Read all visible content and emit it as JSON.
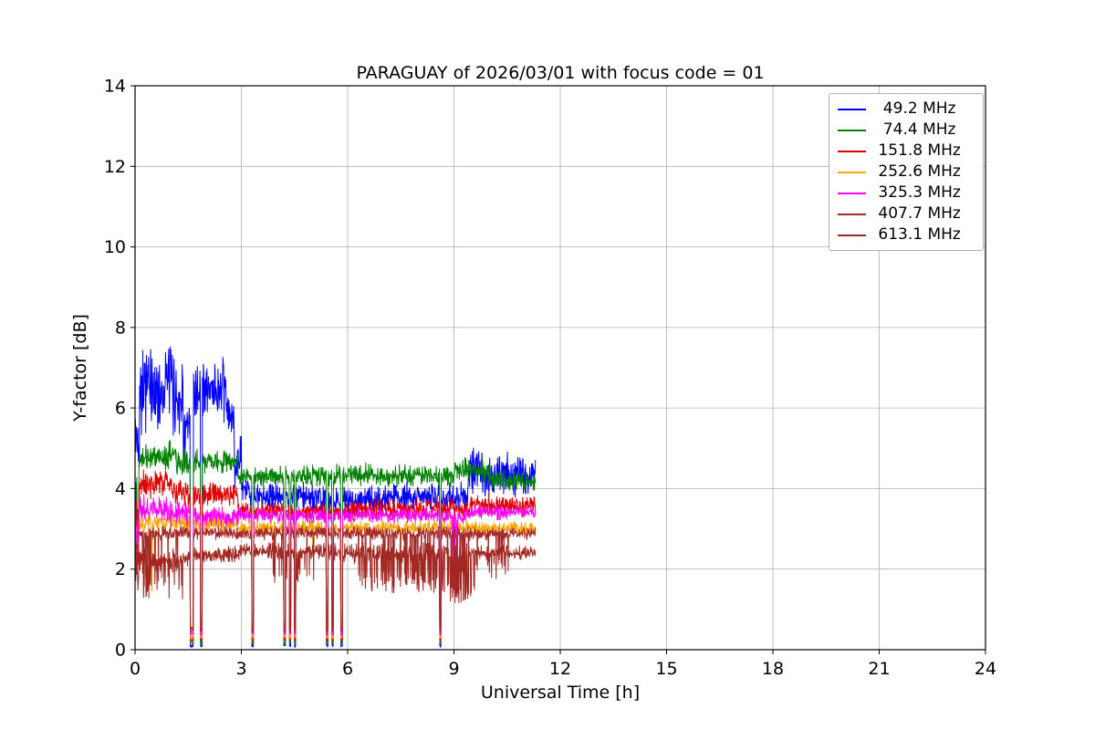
{
  "chart_data": {
    "type": "line",
    "title": "PARAGUAY of 2026/03/01 with focus code = 01",
    "xlabel": "Universal Time [h]",
    "ylabel": "Y-factor [dB]",
    "xlim": [
      0,
      24
    ],
    "ylim": [
      0,
      14
    ],
    "xticks": [
      0,
      3,
      6,
      9,
      12,
      15,
      18,
      21,
      24
    ],
    "yticks": [
      0,
      2,
      4,
      6,
      8,
      10,
      12,
      14
    ],
    "grid": true,
    "grid_color": "#b0b0b0",
    "legend_position": "upper right",
    "data_start": 0.0,
    "data_end": 11.3,
    "sample_step_hours": 0.01,
    "dropouts": [
      {
        "t": 1.6,
        "w": 0.09
      },
      {
        "t": 1.87,
        "w": 0.05
      },
      {
        "t": 3.32,
        "w": 0.05
      },
      {
        "t": 4.22,
        "w": 0.05
      },
      {
        "t": 4.38,
        "w": 0.04
      },
      {
        "t": 4.52,
        "w": 0.04
      },
      {
        "t": 5.42,
        "w": 0.05
      },
      {
        "t": 5.57,
        "w": 0.04
      },
      {
        "t": 5.83,
        "w": 0.05
      },
      {
        "t": 8.62,
        "w": 0.04
      }
    ],
    "series": [
      {
        "name": "49.2 MHz",
        "label": "  49.2 MHz",
        "color": "#0000ff",
        "band": [
          [
            0.0,
            0.12,
            4.2,
            6.2
          ],
          [
            0.12,
            0.4,
            5.2,
            8.0
          ],
          [
            0.4,
            0.8,
            5.2,
            7.6
          ],
          [
            0.8,
            1.05,
            5.6,
            7.8
          ],
          [
            1.05,
            1.35,
            5.2,
            7.4
          ],
          [
            1.35,
            1.58,
            4.6,
            6.2
          ],
          [
            1.58,
            1.82,
            5.6,
            7.2
          ],
          [
            1.82,
            2.3,
            5.6,
            7.4
          ],
          [
            2.3,
            2.6,
            5.4,
            7.3
          ],
          [
            2.6,
            2.8,
            4.8,
            6.6
          ],
          [
            2.8,
            3.0,
            3.9,
            5.4
          ],
          [
            3.0,
            3.3,
            3.5,
            4.4
          ],
          [
            3.3,
            5.0,
            3.4,
            4.2
          ],
          [
            5.0,
            7.0,
            3.3,
            4.1
          ],
          [
            7.0,
            9.4,
            3.4,
            4.2
          ],
          [
            9.4,
            9.9,
            3.7,
            5.2
          ],
          [
            9.9,
            10.4,
            3.6,
            4.9
          ],
          [
            10.4,
            11.31,
            3.7,
            5.0
          ]
        ],
        "spikes": []
      },
      {
        "name": "74.4 MHz",
        "label": "  74.4 MHz",
        "color": "#008000",
        "band": [
          [
            0.0,
            0.1,
            2.2,
            4.6
          ],
          [
            0.1,
            0.95,
            4.4,
            5.15
          ],
          [
            0.95,
            1.15,
            4.5,
            5.3
          ],
          [
            1.15,
            1.58,
            4.3,
            5.0
          ],
          [
            1.58,
            2.9,
            4.3,
            5.0
          ],
          [
            2.9,
            5.0,
            4.0,
            4.6
          ],
          [
            5.0,
            9.0,
            4.0,
            4.65
          ],
          [
            9.0,
            10.0,
            4.1,
            4.8
          ],
          [
            10.0,
            11.31,
            3.9,
            4.5
          ]
        ],
        "spikes": []
      },
      {
        "name": "151.8 MHz",
        "label": " 151.8 MHz",
        "color": "#e00000",
        "band": [
          [
            0.0,
            0.1,
            1.5,
            4.2
          ],
          [
            0.1,
            1.0,
            3.7,
            4.5
          ],
          [
            1.0,
            1.58,
            3.5,
            4.3
          ],
          [
            1.58,
            2.9,
            3.5,
            4.2
          ],
          [
            2.9,
            6.0,
            3.2,
            3.7
          ],
          [
            6.0,
            9.4,
            3.2,
            3.8
          ],
          [
            9.4,
            11.31,
            3.3,
            3.9
          ]
        ],
        "spikes": []
      },
      {
        "name": "252.6 MHz",
        "label": " 252.6 MHz",
        "color": "#ffa500",
        "band": [
          [
            0.0,
            0.1,
            2.2,
            3.4
          ],
          [
            0.1,
            2.9,
            2.9,
            3.4
          ],
          [
            2.9,
            9.4,
            2.8,
            3.25
          ],
          [
            9.4,
            11.31,
            2.8,
            3.2
          ]
        ],
        "spikes": [
          [
            0.38,
            0.48,
            1.35,
            0.5
          ],
          [
            4.5,
            5.05,
            2.0,
            0.05
          ]
        ]
      },
      {
        "name": "325.3 MHz",
        "label": " 325.3 MHz",
        "color": "#ff00ff",
        "band": [
          [
            0.0,
            0.1,
            1.9,
            3.6
          ],
          [
            0.1,
            1.0,
            3.1,
            3.9
          ],
          [
            1.0,
            1.58,
            3.0,
            3.75
          ],
          [
            1.58,
            2.9,
            3.0,
            3.6
          ],
          [
            2.9,
            9.4,
            3.1,
            3.55
          ],
          [
            9.4,
            11.31,
            3.2,
            3.6
          ]
        ],
        "spikes": [
          [
            8.95,
            9.1,
            1.3,
            0.25
          ]
        ]
      },
      {
        "name": "407.7 MHz",
        "label": " 407.7 MHz",
        "color": "#a52a2a",
        "band": [
          [
            0.0,
            0.1,
            1.6,
            3.0
          ],
          [
            0.1,
            2.9,
            2.7,
            3.1
          ],
          [
            2.9,
            9.4,
            2.7,
            3.1
          ],
          [
            9.4,
            11.31,
            2.7,
            3.05
          ]
        ],
        "spikes": [
          [
            0.2,
            1.35,
            1.6,
            0.12
          ],
          [
            3.85,
            5.1,
            1.6,
            0.1
          ],
          [
            6.3,
            9.6,
            1.5,
            0.15
          ],
          [
            9.6,
            10.6,
            1.9,
            0.08
          ]
        ]
      },
      {
        "name": "613.1 MHz",
        "label": " 613.1 MHz",
        "color": "#a02820",
        "band": [
          [
            0.0,
            0.1,
            1.4,
            2.5
          ],
          [
            0.1,
            1.35,
            1.9,
            2.6
          ],
          [
            1.35,
            1.58,
            2.0,
            2.55
          ],
          [
            1.58,
            2.9,
            2.1,
            2.6
          ],
          [
            2.9,
            5.8,
            2.2,
            2.7
          ],
          [
            5.8,
            9.4,
            2.1,
            2.7
          ],
          [
            9.4,
            11.31,
            2.2,
            2.6
          ]
        ],
        "spikes": [
          [
            0.2,
            1.35,
            1.25,
            0.15
          ],
          [
            3.85,
            5.1,
            1.6,
            0.1
          ],
          [
            6.3,
            8.9,
            1.4,
            0.15
          ],
          [
            8.9,
            9.6,
            1.15,
            0.3
          ],
          [
            9.6,
            10.6,
            1.7,
            0.08
          ]
        ]
      }
    ]
  }
}
